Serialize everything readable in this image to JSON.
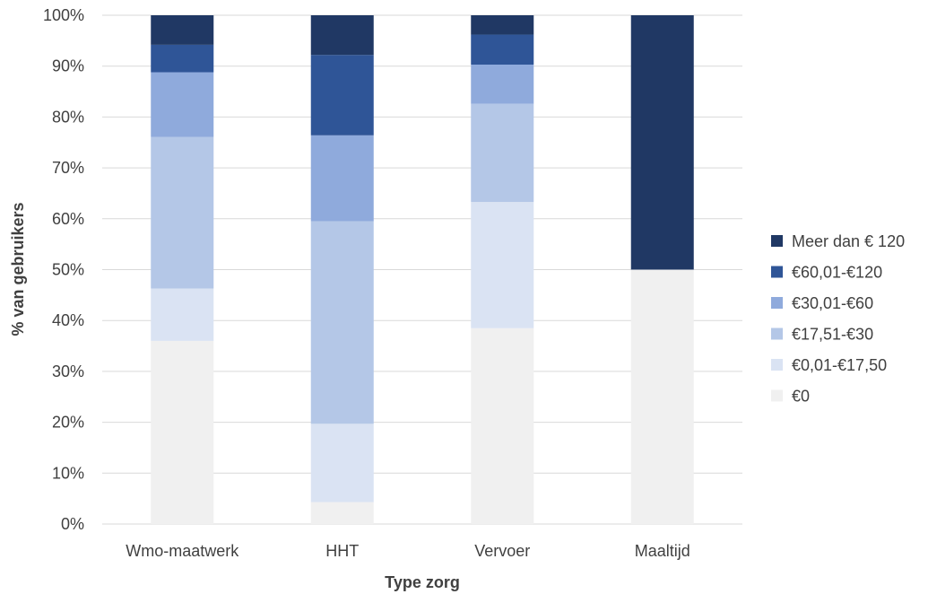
{
  "chart_data": {
    "type": "bar",
    "stacked": true,
    "normalized": true,
    "title": "",
    "xlabel": "Type zorg",
    "ylabel": "% van gebruikers",
    "ylim": [
      0,
      100
    ],
    "yticks": [
      "0%",
      "10%",
      "20%",
      "30%",
      "40%",
      "50%",
      "60%",
      "70%",
      "80%",
      "90%",
      "100%"
    ],
    "grid": true,
    "legend_position": "right",
    "categories": [
      "Wmo-maatwerk",
      "HHT",
      "Vervoer",
      "Maaltijd"
    ],
    "series": [
      {
        "name": "€0",
        "color": "#f0f0f0",
        "values": [
          36,
          4.3,
          38.5,
          50
        ]
      },
      {
        "name": "€0,01-€17,50",
        "color": "#dae3f3",
        "values": [
          10.3,
          15.4,
          24.8,
          0
        ]
      },
      {
        "name": "€17,51-€30",
        "color": "#b4c7e7",
        "values": [
          29.8,
          39.8,
          19.3,
          0
        ]
      },
      {
        "name": "€30,01-€60",
        "color": "#8faadc",
        "values": [
          12.7,
          16.9,
          7.7,
          0
        ]
      },
      {
        "name": "€60,01-€120",
        "color": "#2f5597",
        "values": [
          5.4,
          15.8,
          5.9,
          0
        ]
      },
      {
        "name": "Meer dan € 120",
        "color": "#203864",
        "values": [
          5.8,
          7.8,
          3.8,
          50
        ]
      }
    ]
  }
}
